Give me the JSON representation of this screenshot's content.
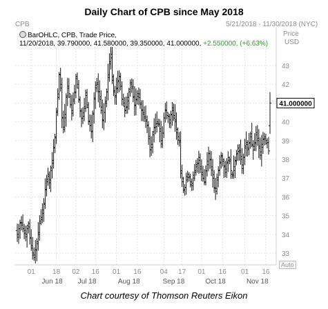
{
  "header": {
    "title": "Daily Chart of CPB since May 2018",
    "symbol_label": "CPB",
    "date_range": "5/21/2018 - 11/30/2018 (NYC)",
    "price_label": "Price",
    "currency_label": "USD",
    "auto_button": "Auto"
  },
  "legend": {
    "line1": "BarOHLC, CPB, Trade Price,",
    "line2_main": "11/20/2018, 39.790000, 41.580000, 39.350000, 41.000000, ",
    "line2_change": "+2.550000, (+6.63%)",
    "change_color": "#2e9c2e"
  },
  "last_price_tag": "41.000000",
  "caption": "Chart courtesy of Thomson Reuters Eikon",
  "chart_data": {
    "type": "ohlc",
    "title": "Daily Chart of CPB since May 2018",
    "ylim": [
      32.5,
      44.5
    ],
    "y_ticks": [
      33,
      34,
      35,
      36,
      37,
      38,
      39,
      40,
      41,
      42,
      43
    ],
    "x_ticks": [
      {
        "label": "01",
        "day": 10
      },
      {
        "label": "18",
        "day": 28
      },
      {
        "label": "02",
        "day": 42
      },
      {
        "label": "16",
        "day": 56
      },
      {
        "label": "01",
        "day": 71
      },
      {
        "label": "16",
        "day": 86
      },
      {
        "label": "04",
        "day": 105
      },
      {
        "label": "17",
        "day": 118
      },
      {
        "label": "01",
        "day": 132
      },
      {
        "label": "16",
        "day": 147
      },
      {
        "label": "01",
        "day": 163
      },
      {
        "label": "16",
        "day": 178
      }
    ],
    "months": [
      {
        "label": "Jun 18",
        "day": 25
      },
      {
        "label": "Jul 18",
        "day": 50
      },
      {
        "label": "Aug 18",
        "day": 80
      },
      {
        "label": "Sep 18",
        "day": 112
      },
      {
        "label": "Oct 18",
        "day": 142
      },
      {
        "label": "Nov 18",
        "day": 172
      }
    ],
    "grid": true,
    "last_price": 41.0,
    "bars_close": [
      34.0,
      34.3,
      34.6,
      34.5,
      34.3,
      34.2,
      34.0,
      34.3,
      34.4,
      33.8,
      33.4,
      33.0,
      32.9,
      33.2,
      33.6,
      34.1,
      34.6,
      34.9,
      35.3,
      35.6,
      36.4,
      36.8,
      37.2,
      36.9,
      37.4,
      37.8,
      38.6,
      39.2,
      40.5,
      41.3,
      42.5,
      41.8,
      40.2,
      39.6,
      40.4,
      41.3,
      41.9,
      41.5,
      40.9,
      40.6,
      41.2,
      41.6,
      42.3,
      42.0,
      41.2,
      40.6,
      40.2,
      40.3,
      40.8,
      41.4,
      40.9,
      40.0,
      39.8,
      39.5,
      40.4,
      41.2,
      41.8,
      42.0,
      41.6,
      41.2,
      40.6,
      40.1,
      40.5,
      41.0,
      41.6,
      42.5,
      43.2,
      43.6,
      42.4,
      41.6,
      41.4,
      41.8,
      42.2,
      42.4,
      41.9,
      41.2,
      41.0,
      40.6,
      40.8,
      41.3,
      41.6,
      42.1,
      41.8,
      41.3,
      40.9,
      41.2,
      41.5,
      41.3,
      41.0,
      40.6,
      40.5,
      40.2,
      40.1,
      39.8,
      39.1,
      38.5,
      38.8,
      39.3,
      39.7,
      39.9,
      40.0,
      39.9,
      39.5,
      39.0,
      39.4,
      40.2,
      40.6,
      40.5,
      40.3,
      40.1,
      40.4,
      40.6,
      40.2,
      40.0,
      39.6,
      39.2,
      39.0,
      37.4,
      37.0,
      36.4,
      36.5,
      36.9,
      37.2,
      37.1,
      36.8,
      36.6,
      37.0,
      37.3,
      37.6,
      37.8,
      38.1,
      37.6,
      37.3,
      37.0,
      36.8,
      37.4,
      37.9,
      38.3,
      38.0,
      37.6,
      37.0,
      36.5,
      36.3,
      36.9,
      37.4,
      37.8,
      38.2,
      38.0,
      37.6,
      37.3,
      37.8,
      38.1,
      37.9,
      37.4,
      37.2,
      37.6,
      37.9,
      38.3,
      38.6,
      38.4,
      38.0,
      37.7,
      38.1,
      38.6,
      38.9,
      38.6,
      38.9,
      39.2,
      38.8,
      38.5,
      38.9,
      39.3,
      39.0,
      38.6,
      38.4,
      38.8,
      39.1,
      39.2,
      39.0,
      38.9,
      38.45,
      41.0
    ]
  }
}
